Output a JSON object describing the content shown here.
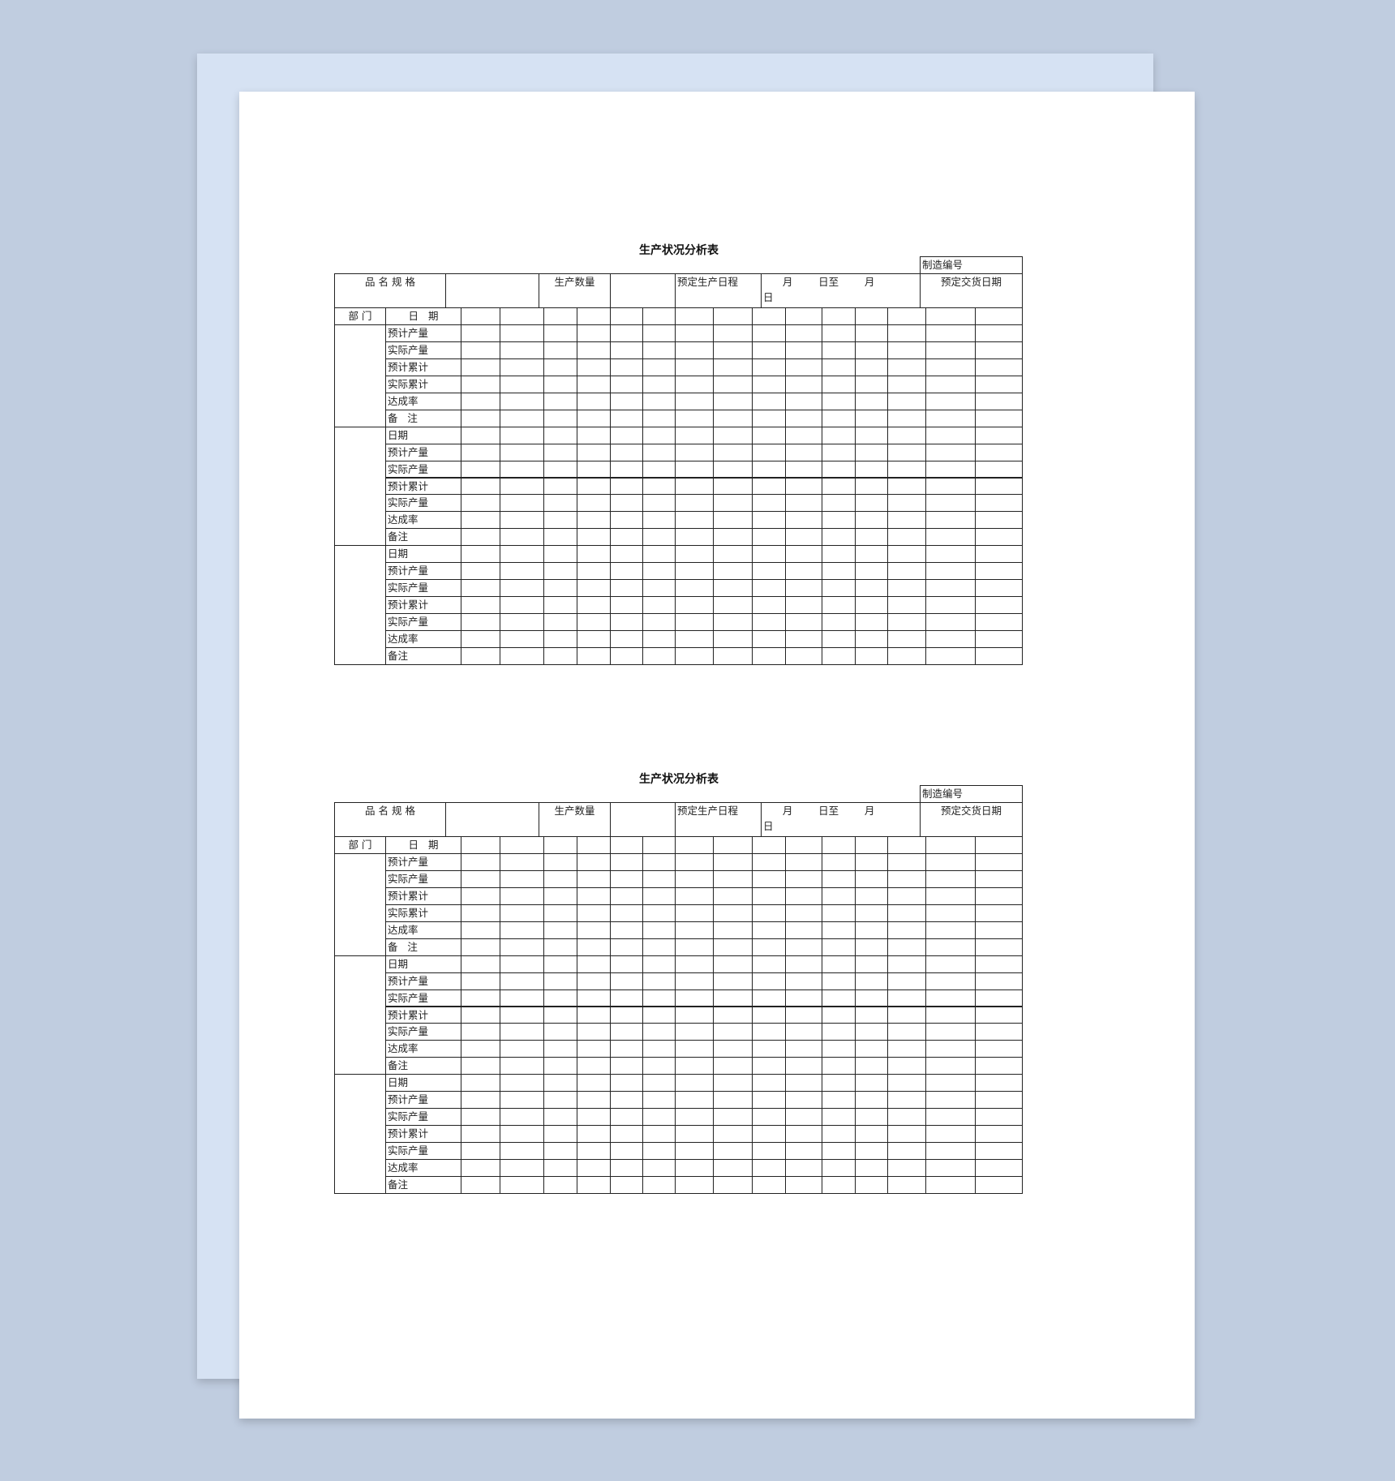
{
  "document": {
    "sheets": [
      {
        "title": "生产状况分析表",
        "serial_label": "制造编号",
        "header": {
          "product_spec": "品 名 规 格",
          "product_spec_value": "",
          "quantity_label": "生产数量",
          "quantity_value": "",
          "schedule_label": "预定生产日程",
          "schedule_value_line1": "      月        日至        月",
          "schedule_value_line2": "日",
          "delivery_label": "预定交货日期"
        },
        "dept_label": "部 门",
        "date_label": "日   期",
        "row_labels": [
          "预计产量",
          "实际产量",
          "预计累计",
          "实际累计",
          "达成率",
          "备   注",
          "日期",
          "预计产量",
          "实际产量",
          "预计累计",
          "实际产量",
          "达成率",
          "备注",
          "日期",
          "预计产量",
          "实际产量",
          "预计累计",
          "实际产量",
          "达成率",
          "备注"
        ]
      },
      {
        "title": "生产状况分析表",
        "serial_label": "制造编号",
        "header": {
          "product_spec": "品 名 规 格",
          "product_spec_value": "",
          "quantity_label": "生产数量",
          "quantity_value": "",
          "schedule_label": "预定生产日程",
          "schedule_value_line1": "      月        日至        月",
          "schedule_value_line2": "日",
          "delivery_label": "预定交货日期"
        },
        "dept_label": "部 门",
        "date_label": "日   期",
        "row_labels": [
          "预计产量",
          "实际产量",
          "预计累计",
          "实际累计",
          "达成率",
          "备   注",
          "日期",
          "预计产量",
          "实际产量",
          "预计累计",
          "实际产量",
          "达成率",
          "备注",
          "日期",
          "预计产量",
          "实际产量",
          "预计累计",
          "实际产量",
          "达成率",
          "备注"
        ]
      }
    ]
  }
}
